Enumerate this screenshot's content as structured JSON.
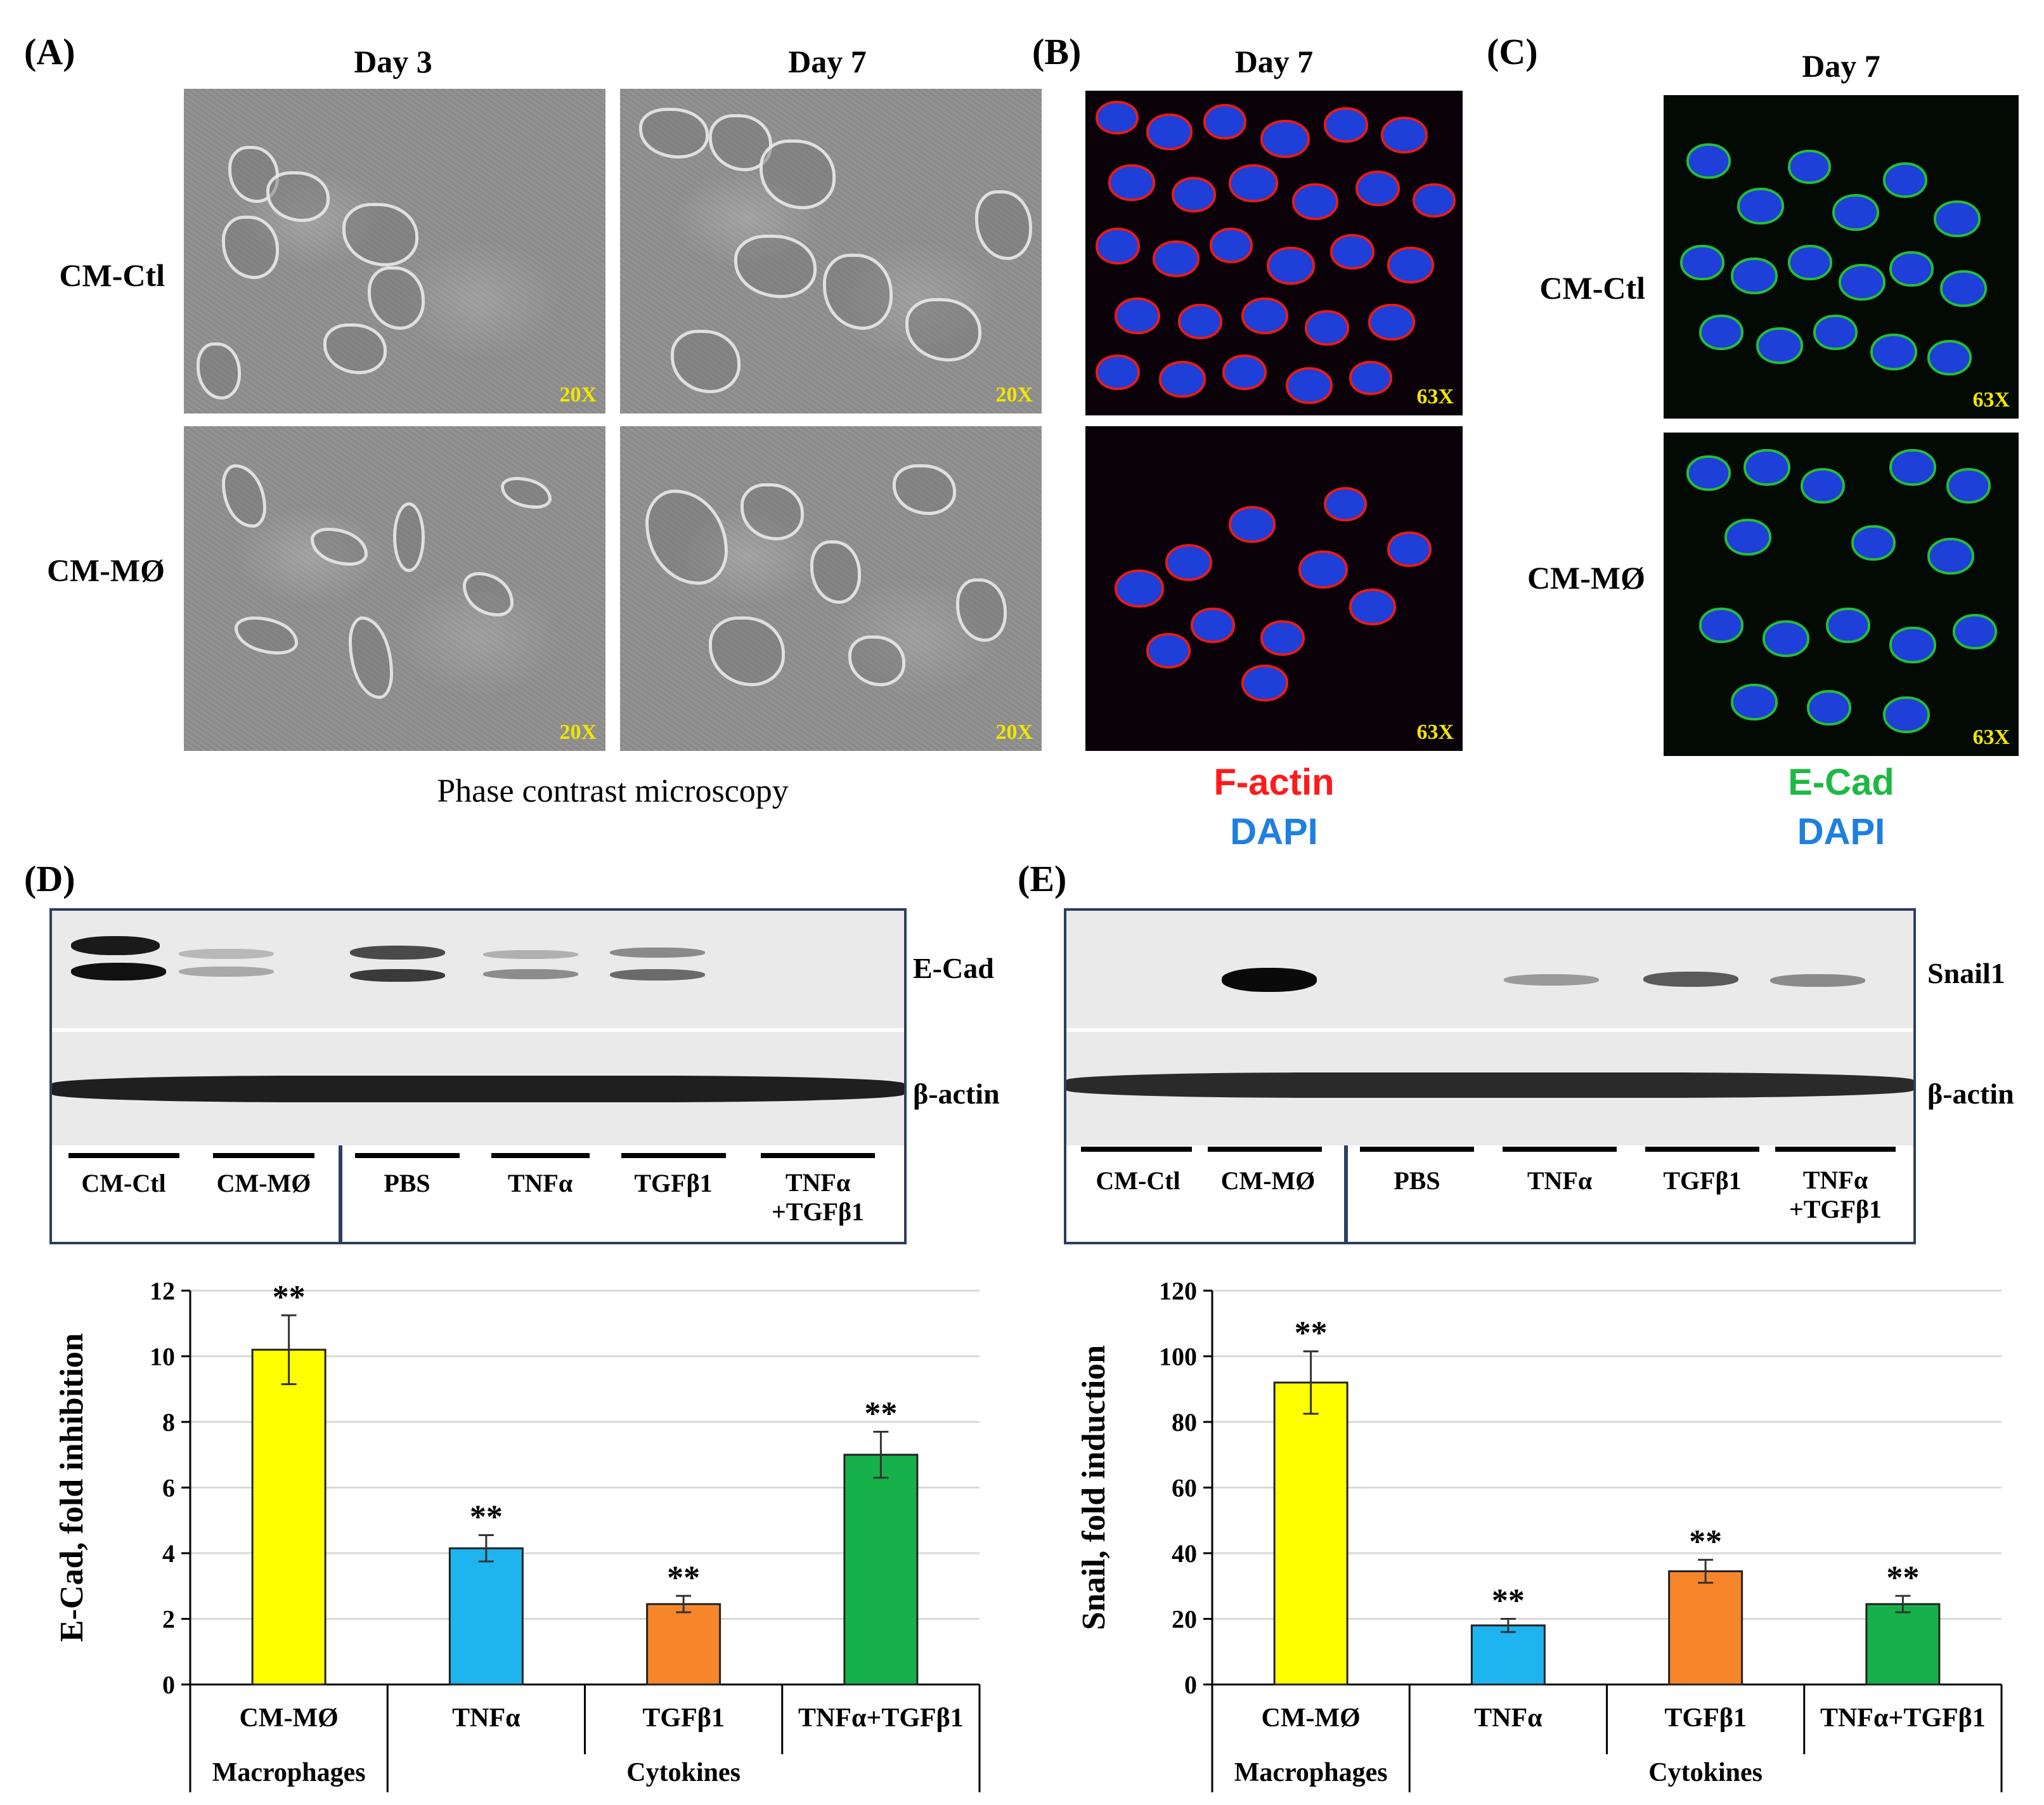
{
  "panel_a": {
    "label": "(A)",
    "col_headers": [
      "Day 3",
      "Day 7"
    ],
    "row_labels": [
      "CM-Ctl",
      "CM-MØ"
    ],
    "magnifications": [
      "20X",
      "20X",
      "20X",
      "20X"
    ],
    "caption": "Phase contrast microscopy"
  },
  "panel_b": {
    "label": "(B)",
    "header": "Day 7",
    "magnifications": [
      "63X",
      "63X"
    ],
    "stain_1": "F-actin",
    "stain_2": "DAPI"
  },
  "panel_c": {
    "label": "(C)",
    "header": "Day 7",
    "row_labels": [
      "CM-Ctl",
      "CM-MØ"
    ],
    "magnifications": [
      "63X",
      "63X"
    ],
    "stain_1": "E-Cad",
    "stain_2": "DAPI"
  },
  "panel_d": {
    "label": "(D)",
    "proteins": [
      "E-Cad",
      "β-actin"
    ],
    "lanes_group1": [
      "CM-Ctl",
      "CM-MØ"
    ],
    "lanes_group2": [
      "PBS",
      "TNFα",
      "TGFβ1",
      "TNFα\n+TGFβ1"
    ]
  },
  "panel_e": {
    "label": "(E)",
    "proteins": [
      "Snail1",
      "β-actin"
    ],
    "lanes_group1": [
      "CM-Ctl",
      "CM-MØ"
    ],
    "lanes_group2": [
      "PBS",
      "TNFα",
      "TGFβ1",
      "TNFα\n+TGFβ1"
    ]
  },
  "colors": {
    "yellow": "#ffff00",
    "blue": "#1eb4f0",
    "orange": "#f7862a",
    "green": "#16b14a",
    "frame": "#2d3e5f"
  },
  "chart_data": [
    {
      "type": "bar",
      "panel": "D",
      "categories": [
        "CM-MØ",
        "TNFα",
        "TGFβ1",
        "TNFα+TGFβ1"
      ],
      "groups": [
        {
          "label": "Macrophages",
          "categories": [
            "CM-MØ"
          ]
        },
        {
          "label": "Cytokines",
          "categories": [
            "TNFα",
            "TGFβ1",
            "TNFα+TGFβ1"
          ]
        }
      ],
      "values": [
        10.2,
        4.15,
        2.45,
        7.0
      ],
      "errors": [
        1.05,
        0.4,
        0.25,
        0.7
      ],
      "significance": [
        "**",
        "**",
        "**",
        "**"
      ],
      "bar_colors": [
        "#ffff00",
        "#1eb4f0",
        "#f7862a",
        "#16b14a"
      ],
      "ylabel": "E-Cad, fold inhibition",
      "xlabel": "",
      "ylim": [
        0,
        12
      ],
      "yticks": [
        0,
        2,
        4,
        6,
        8,
        10,
        12
      ],
      "grid": true
    },
    {
      "type": "bar",
      "panel": "E",
      "categories": [
        "CM-MØ",
        "TNFα",
        "TGFβ1",
        "TNFα+TGFβ1"
      ],
      "groups": [
        {
          "label": "Macrophages",
          "categories": [
            "CM-MØ"
          ]
        },
        {
          "label": "Cytokines",
          "categories": [
            "TNFα",
            "TGFβ1",
            "TNFα+TGFβ1"
          ]
        }
      ],
      "values": [
        92,
        18,
        34.5,
        24.5
      ],
      "errors": [
        9.5,
        2,
        3.5,
        2.5
      ],
      "significance": [
        "**",
        "**",
        "**",
        "**"
      ],
      "bar_colors": [
        "#ffff00",
        "#1eb4f0",
        "#f7862a",
        "#16b14a"
      ],
      "ylabel": "Snail, fold induction",
      "xlabel": "",
      "ylim": [
        0,
        120
      ],
      "yticks": [
        0,
        20,
        40,
        60,
        80,
        100,
        120
      ],
      "grid": true
    }
  ]
}
